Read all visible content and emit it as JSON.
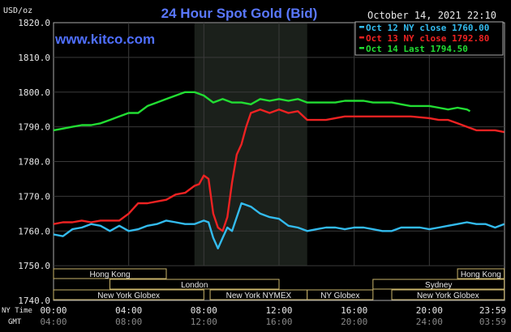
{
  "chart_data": {
    "type": "line",
    "title": "24 Hour Spot Gold (Bid)",
    "timestamp": "October 14, 2021 22:10",
    "site": "www.kitco.com",
    "y_unit": "USD/oz",
    "ylim": [
      1740,
      1820
    ],
    "y_ticks": [
      "1820.0",
      "1810.0",
      "1800.0",
      "1790.0",
      "1780.0",
      "1770.0",
      "1760.0",
      "1750.0",
      "1740.0"
    ],
    "x_ticks_ny": [
      "00:00",
      "04:00",
      "08:00",
      "12:00",
      "16:00",
      "20:00",
      "23:59"
    ],
    "x_ticks_gmt": [
      "04:00",
      "08:00",
      "12:00",
      "16:00",
      "20:00",
      "24:00",
      "03:59"
    ],
    "x_row_labels": {
      "ny": "NY Time",
      "gmt": "GMT"
    },
    "legend_position": "top-right",
    "highlight_window": [
      "07:30",
      "13:30"
    ],
    "sessions": [
      {
        "label": "Hong Kong",
        "start": "00:00",
        "end": "06:00",
        "row": 0
      },
      {
        "label": "Hong Kong",
        "start": "21:30",
        "end": "23:59",
        "row": 0
      },
      {
        "label": "London",
        "start": "03:00",
        "end": "12:00",
        "row": 1
      },
      {
        "label": "Sydney",
        "start": "17:00",
        "end": "23:59",
        "row": 1
      },
      {
        "label": "New York Globex",
        "start": "00:00",
        "end": "08:00",
        "row": 2
      },
      {
        "label": "New York NYMEX",
        "start": "08:20",
        "end": "13:30",
        "row": 2
      },
      {
        "label": "NY Globex",
        "start": "13:30",
        "end": "17:00",
        "row": 2
      },
      {
        "label": "New York Globex",
        "start": "18:00",
        "end": "23:59",
        "row": 2
      }
    ],
    "series": [
      {
        "name": "Oct 12 NY close 1760.00",
        "color": "#33bbee",
        "x": [
          "00:00",
          "00:30",
          "01:00",
          "01:30",
          "02:00",
          "02:30",
          "03:00",
          "03:30",
          "04:00",
          "04:30",
          "05:00",
          "05:30",
          "06:00",
          "06:30",
          "07:00",
          "07:30",
          "08:00",
          "08:15",
          "08:30",
          "08:45",
          "09:00",
          "09:15",
          "09:30",
          "10:00",
          "10:30",
          "11:00",
          "11:30",
          "12:00",
          "12:30",
          "13:00",
          "13:30",
          "14:00",
          "14:30",
          "15:00",
          "15:30",
          "16:00",
          "16:30",
          "17:00",
          "17:30",
          "18:00",
          "18:30",
          "19:00",
          "19:30",
          "20:00",
          "20:30",
          "21:00",
          "21:30",
          "22:00",
          "22:30",
          "23:00",
          "23:30",
          "23:59"
        ],
        "values": [
          1759,
          1758.5,
          1760.5,
          1761,
          1762,
          1761.5,
          1760,
          1761.5,
          1760,
          1760.5,
          1761.5,
          1762,
          1763,
          1762.5,
          1762,
          1762,
          1763,
          1762.5,
          1758,
          1755,
          1758,
          1761,
          1760,
          1768,
          1767,
          1765,
          1764,
          1763.5,
          1761.5,
          1761,
          1760,
          1760.5,
          1761,
          1761,
          1760.5,
          1761,
          1761,
          1760.5,
          1760,
          1760,
          1761,
          1761,
          1761,
          1760.5,
          1761,
          1761.5,
          1762,
          1762.5,
          1762,
          1762,
          1761,
          1762
        ]
      },
      {
        "name": "Oct 13 NY close 1792.80",
        "color": "#ee2222",
        "x": [
          "00:00",
          "00:30",
          "01:00",
          "01:30",
          "02:00",
          "02:30",
          "03:00",
          "03:30",
          "04:00",
          "04:30",
          "05:00",
          "05:30",
          "06:00",
          "06:30",
          "07:00",
          "07:30",
          "07:45",
          "08:00",
          "08:15",
          "08:30",
          "08:45",
          "09:00",
          "09:15",
          "09:30",
          "09:45",
          "10:00",
          "10:15",
          "10:30",
          "11:00",
          "11:30",
          "12:00",
          "12:30",
          "13:00",
          "13:30",
          "14:00",
          "14:30",
          "15:00",
          "15:30",
          "16:00",
          "17:00",
          "18:00",
          "19:00",
          "20:00",
          "20:30",
          "21:00",
          "21:30",
          "22:00",
          "22:30",
          "23:00",
          "23:30",
          "23:59"
        ],
        "values": [
          1762,
          1762.5,
          1762.5,
          1763,
          1762.5,
          1763,
          1763,
          1763,
          1765,
          1768,
          1768,
          1768.5,
          1769,
          1770.5,
          1771,
          1773,
          1773.5,
          1776,
          1775,
          1765,
          1761,
          1760,
          1764,
          1774,
          1782,
          1785,
          1790,
          1794,
          1795,
          1794,
          1795,
          1794,
          1794.5,
          1792,
          1792,
          1792,
          1792.5,
          1793,
          1793,
          1793,
          1793,
          1793,
          1792.5,
          1792,
          1792,
          1791,
          1790,
          1789,
          1789,
          1789,
          1788.5
        ]
      },
      {
        "name": "Oct 14 Last 1794.50",
        "color": "#22dd33",
        "x": [
          "00:00",
          "00:30",
          "01:00",
          "01:30",
          "02:00",
          "02:30",
          "03:00",
          "03:30",
          "04:00",
          "04:30",
          "05:00",
          "05:30",
          "06:00",
          "06:30",
          "07:00",
          "07:30",
          "08:00",
          "08:30",
          "09:00",
          "09:30",
          "10:00",
          "10:30",
          "11:00",
          "11:30",
          "12:00",
          "12:30",
          "13:00",
          "13:30",
          "14:00",
          "14:30",
          "15:00",
          "15:30",
          "16:00",
          "16:30",
          "17:00",
          "17:30",
          "18:00",
          "18:30",
          "19:00",
          "19:30",
          "20:00",
          "20:30",
          "21:00",
          "21:30",
          "22:00",
          "22:10"
        ],
        "values": [
          1789,
          1789.5,
          1790,
          1790.5,
          1790.5,
          1791,
          1792,
          1793,
          1794,
          1794,
          1796,
          1797,
          1798,
          1799,
          1800,
          1800,
          1799,
          1797,
          1798,
          1797,
          1797,
          1796.5,
          1798,
          1797.5,
          1798,
          1797.5,
          1798,
          1797,
          1797,
          1797,
          1797,
          1797.5,
          1797.5,
          1797.5,
          1797,
          1797,
          1797,
          1796.5,
          1796,
          1796,
          1796,
          1795.5,
          1795,
          1795.5,
          1795,
          1794.5
        ]
      }
    ]
  }
}
